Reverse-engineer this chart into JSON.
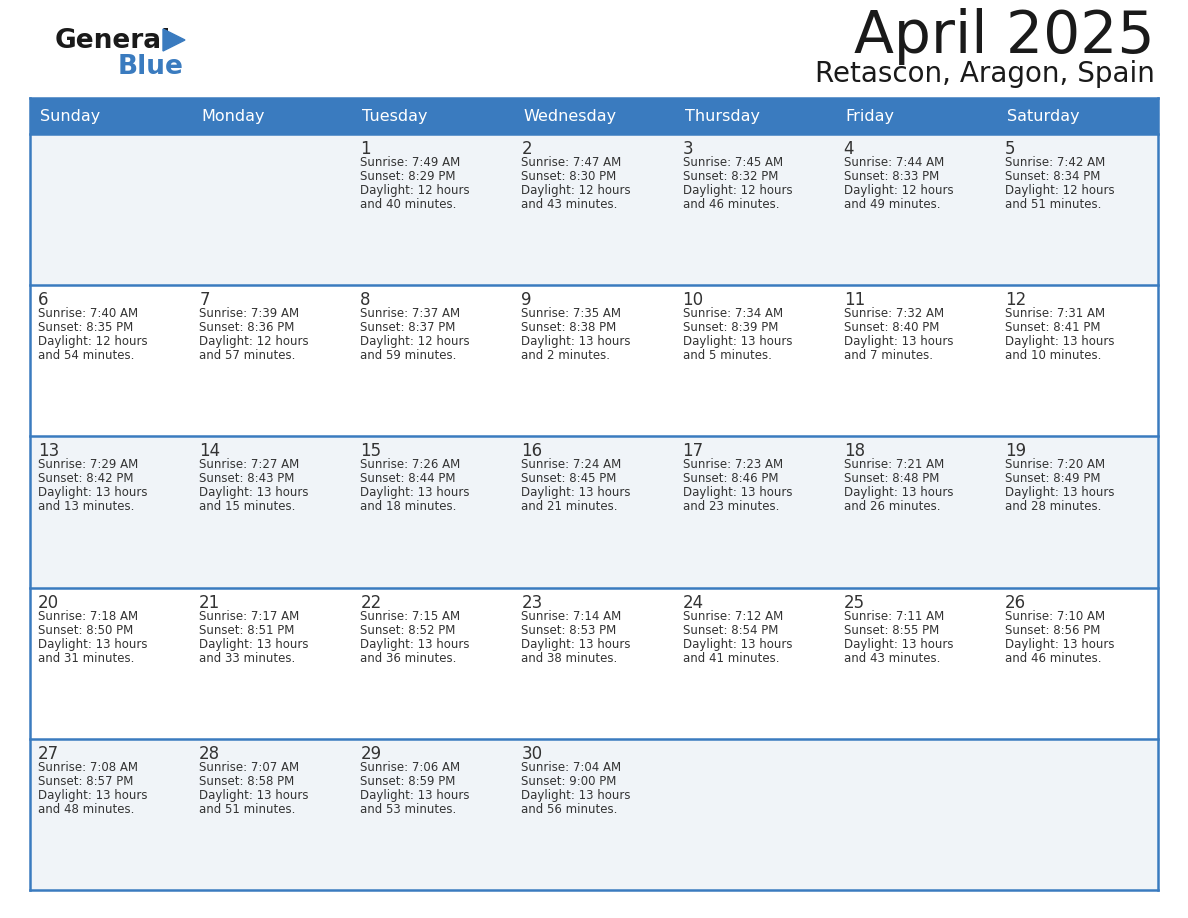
{
  "title": "April 2025",
  "subtitle": "Retascon, Aragon, Spain",
  "header_color": "#3a7bbf",
  "header_text_color": "#ffffff",
  "cell_bg_white": "#ffffff",
  "cell_bg_gray": "#f0f4f8",
  "border_color": "#3a7bbf",
  "row_line_color": "#4a7fc0",
  "text_color": "#333333",
  "days_of_week": [
    "Sunday",
    "Monday",
    "Tuesday",
    "Wednesday",
    "Thursday",
    "Friday",
    "Saturday"
  ],
  "calendar_data": [
    [
      {
        "day": "",
        "sunrise": "",
        "sunset": "",
        "daylight": ""
      },
      {
        "day": "",
        "sunrise": "",
        "sunset": "",
        "daylight": ""
      },
      {
        "day": "1",
        "sunrise": "Sunrise: 7:49 AM",
        "sunset": "Sunset: 8:29 PM",
        "daylight": "Daylight: 12 hours\nand 40 minutes."
      },
      {
        "day": "2",
        "sunrise": "Sunrise: 7:47 AM",
        "sunset": "Sunset: 8:30 PM",
        "daylight": "Daylight: 12 hours\nand 43 minutes."
      },
      {
        "day": "3",
        "sunrise": "Sunrise: 7:45 AM",
        "sunset": "Sunset: 8:32 PM",
        "daylight": "Daylight: 12 hours\nand 46 minutes."
      },
      {
        "day": "4",
        "sunrise": "Sunrise: 7:44 AM",
        "sunset": "Sunset: 8:33 PM",
        "daylight": "Daylight: 12 hours\nand 49 minutes."
      },
      {
        "day": "5",
        "sunrise": "Sunrise: 7:42 AM",
        "sunset": "Sunset: 8:34 PM",
        "daylight": "Daylight: 12 hours\nand 51 minutes."
      }
    ],
    [
      {
        "day": "6",
        "sunrise": "Sunrise: 7:40 AM",
        "sunset": "Sunset: 8:35 PM",
        "daylight": "Daylight: 12 hours\nand 54 minutes."
      },
      {
        "day": "7",
        "sunrise": "Sunrise: 7:39 AM",
        "sunset": "Sunset: 8:36 PM",
        "daylight": "Daylight: 12 hours\nand 57 minutes."
      },
      {
        "day": "8",
        "sunrise": "Sunrise: 7:37 AM",
        "sunset": "Sunset: 8:37 PM",
        "daylight": "Daylight: 12 hours\nand 59 minutes."
      },
      {
        "day": "9",
        "sunrise": "Sunrise: 7:35 AM",
        "sunset": "Sunset: 8:38 PM",
        "daylight": "Daylight: 13 hours\nand 2 minutes."
      },
      {
        "day": "10",
        "sunrise": "Sunrise: 7:34 AM",
        "sunset": "Sunset: 8:39 PM",
        "daylight": "Daylight: 13 hours\nand 5 minutes."
      },
      {
        "day": "11",
        "sunrise": "Sunrise: 7:32 AM",
        "sunset": "Sunset: 8:40 PM",
        "daylight": "Daylight: 13 hours\nand 7 minutes."
      },
      {
        "day": "12",
        "sunrise": "Sunrise: 7:31 AM",
        "sunset": "Sunset: 8:41 PM",
        "daylight": "Daylight: 13 hours\nand 10 minutes."
      }
    ],
    [
      {
        "day": "13",
        "sunrise": "Sunrise: 7:29 AM",
        "sunset": "Sunset: 8:42 PM",
        "daylight": "Daylight: 13 hours\nand 13 minutes."
      },
      {
        "day": "14",
        "sunrise": "Sunrise: 7:27 AM",
        "sunset": "Sunset: 8:43 PM",
        "daylight": "Daylight: 13 hours\nand 15 minutes."
      },
      {
        "day": "15",
        "sunrise": "Sunrise: 7:26 AM",
        "sunset": "Sunset: 8:44 PM",
        "daylight": "Daylight: 13 hours\nand 18 minutes."
      },
      {
        "day": "16",
        "sunrise": "Sunrise: 7:24 AM",
        "sunset": "Sunset: 8:45 PM",
        "daylight": "Daylight: 13 hours\nand 21 minutes."
      },
      {
        "day": "17",
        "sunrise": "Sunrise: 7:23 AM",
        "sunset": "Sunset: 8:46 PM",
        "daylight": "Daylight: 13 hours\nand 23 minutes."
      },
      {
        "day": "18",
        "sunrise": "Sunrise: 7:21 AM",
        "sunset": "Sunset: 8:48 PM",
        "daylight": "Daylight: 13 hours\nand 26 minutes."
      },
      {
        "day": "19",
        "sunrise": "Sunrise: 7:20 AM",
        "sunset": "Sunset: 8:49 PM",
        "daylight": "Daylight: 13 hours\nand 28 minutes."
      }
    ],
    [
      {
        "day": "20",
        "sunrise": "Sunrise: 7:18 AM",
        "sunset": "Sunset: 8:50 PM",
        "daylight": "Daylight: 13 hours\nand 31 minutes."
      },
      {
        "day": "21",
        "sunrise": "Sunrise: 7:17 AM",
        "sunset": "Sunset: 8:51 PM",
        "daylight": "Daylight: 13 hours\nand 33 minutes."
      },
      {
        "day": "22",
        "sunrise": "Sunrise: 7:15 AM",
        "sunset": "Sunset: 8:52 PM",
        "daylight": "Daylight: 13 hours\nand 36 minutes."
      },
      {
        "day": "23",
        "sunrise": "Sunrise: 7:14 AM",
        "sunset": "Sunset: 8:53 PM",
        "daylight": "Daylight: 13 hours\nand 38 minutes."
      },
      {
        "day": "24",
        "sunrise": "Sunrise: 7:12 AM",
        "sunset": "Sunset: 8:54 PM",
        "daylight": "Daylight: 13 hours\nand 41 minutes."
      },
      {
        "day": "25",
        "sunrise": "Sunrise: 7:11 AM",
        "sunset": "Sunset: 8:55 PM",
        "daylight": "Daylight: 13 hours\nand 43 minutes."
      },
      {
        "day": "26",
        "sunrise": "Sunrise: 7:10 AM",
        "sunset": "Sunset: 8:56 PM",
        "daylight": "Daylight: 13 hours\nand 46 minutes."
      }
    ],
    [
      {
        "day": "27",
        "sunrise": "Sunrise: 7:08 AM",
        "sunset": "Sunset: 8:57 PM",
        "daylight": "Daylight: 13 hours\nand 48 minutes."
      },
      {
        "day": "28",
        "sunrise": "Sunrise: 7:07 AM",
        "sunset": "Sunset: 8:58 PM",
        "daylight": "Daylight: 13 hours\nand 51 minutes."
      },
      {
        "day": "29",
        "sunrise": "Sunrise: 7:06 AM",
        "sunset": "Sunset: 8:59 PM",
        "daylight": "Daylight: 13 hours\nand 53 minutes."
      },
      {
        "day": "30",
        "sunrise": "Sunrise: 7:04 AM",
        "sunset": "Sunset: 9:00 PM",
        "daylight": "Daylight: 13 hours\nand 56 minutes."
      },
      {
        "day": "",
        "sunrise": "",
        "sunset": "",
        "daylight": ""
      },
      {
        "day": "",
        "sunrise": "",
        "sunset": "",
        "daylight": ""
      },
      {
        "day": "",
        "sunrise": "",
        "sunset": "",
        "daylight": ""
      }
    ]
  ]
}
